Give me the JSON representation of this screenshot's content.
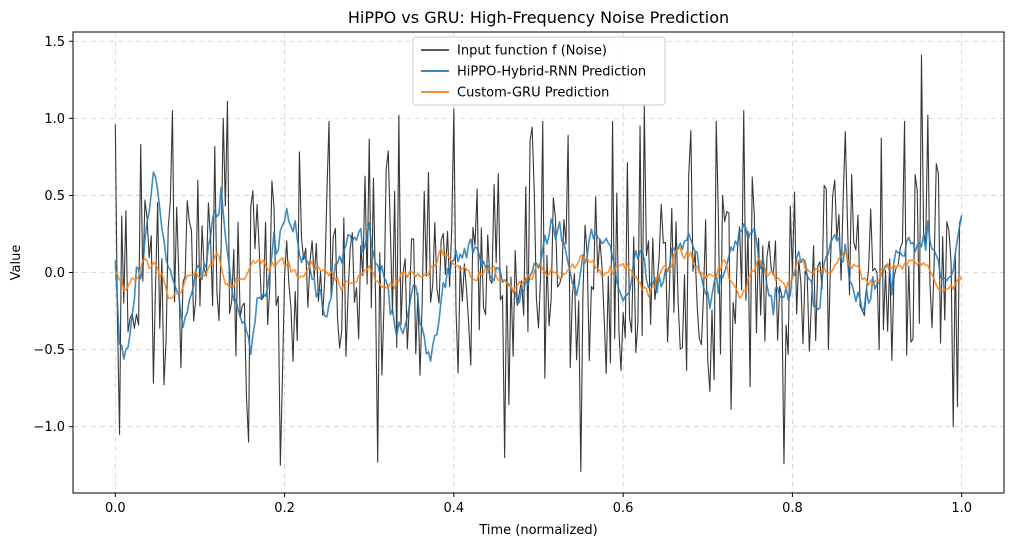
{
  "chart_data": {
    "type": "line",
    "title": "HiPPO vs GRU: High-Frequency Noise Prediction",
    "xlabel": "Time (normalized)",
    "ylabel": "Value",
    "xlim": [
      -0.05,
      1.05
    ],
    "ylim": [
      -1.43,
      1.56
    ],
    "xticks": [
      0.0,
      0.2,
      0.4,
      0.6,
      0.8,
      1.0
    ],
    "xtick_labels": [
      "0.0",
      "0.2",
      "0.4",
      "0.6",
      "0.8",
      "1.0"
    ],
    "yticks": [
      -1.0,
      -0.5,
      0.0,
      0.5,
      1.0,
      1.5
    ],
    "ytick_labels": [
      "−1.0",
      "−0.5",
      "0.0",
      "0.5",
      "1.0",
      "1.5"
    ],
    "grid": true,
    "legend_position": "top-center",
    "n_points": 401,
    "x_range": [
      0.0,
      1.0
    ],
    "series": [
      {
        "name": "Input function f (Noise)",
        "color": "#222222",
        "role": "noise",
        "anchors": [
          [
            0.0,
            0.96
          ],
          [
            0.005,
            -1.05
          ],
          [
            0.012,
            0.4
          ],
          [
            0.03,
            0.83
          ],
          [
            0.068,
            1.05
          ],
          [
            0.128,
            1.0
          ],
          [
            0.133,
            1.11
          ],
          [
            0.158,
            -1.1
          ],
          [
            0.195,
            -1.25
          ],
          [
            0.31,
            -1.23
          ],
          [
            0.335,
            1.02
          ],
          [
            0.401,
            1.06
          ],
          [
            0.46,
            -1.2
          ],
          [
            0.505,
            0.98
          ],
          [
            0.55,
            -1.29
          ],
          [
            0.62,
            0.95
          ],
          [
            0.625,
            1.08
          ],
          [
            0.68,
            0.92
          ],
          [
            0.71,
            0.98
          ],
          [
            0.742,
            1.05
          ],
          [
            0.79,
            -1.24
          ],
          [
            0.953,
            1.41
          ],
          [
            0.96,
            1.02
          ],
          [
            0.995,
            -0.87
          ],
          [
            1.0,
            0.37
          ]
        ],
        "amplitude": 0.42
      },
      {
        "name": "HiPPO-Hybrid-RNN Prediction",
        "color": "#1f77b4",
        "role": "smooth",
        "anchors": [
          [
            0.0,
            0.05
          ],
          [
            0.005,
            -0.4
          ],
          [
            0.01,
            -0.55
          ],
          [
            0.02,
            -0.25
          ],
          [
            0.035,
            0.3
          ],
          [
            0.045,
            0.55
          ],
          [
            0.06,
            0.1
          ],
          [
            0.08,
            -0.25
          ],
          [
            0.1,
            0.05
          ],
          [
            0.125,
            0.48
          ],
          [
            0.14,
            -0.1
          ],
          [
            0.16,
            -0.4
          ],
          [
            0.185,
            0.0
          ],
          [
            0.2,
            0.35
          ],
          [
            0.225,
            0.05
          ],
          [
            0.25,
            -0.2
          ],
          [
            0.27,
            0.2
          ],
          [
            0.29,
            0.35
          ],
          [
            0.31,
            0.05
          ],
          [
            0.33,
            -0.35
          ],
          [
            0.35,
            -0.2
          ],
          [
            0.37,
            -0.55
          ],
          [
            0.39,
            -0.1
          ],
          [
            0.42,
            0.2
          ],
          [
            0.44,
            0.0
          ],
          [
            0.47,
            -0.15
          ],
          [
            0.5,
            0.1
          ],
          [
            0.525,
            0.35
          ],
          [
            0.545,
            -0.1
          ],
          [
            0.56,
            0.2
          ],
          [
            0.58,
            0.33
          ],
          [
            0.6,
            -0.25
          ],
          [
            0.62,
            0.1
          ],
          [
            0.645,
            -0.2
          ],
          [
            0.66,
            0.3
          ],
          [
            0.69,
            0.0
          ],
          [
            0.71,
            -0.1
          ],
          [
            0.74,
            0.35
          ],
          [
            0.77,
            0.0
          ],
          [
            0.79,
            -0.2
          ],
          [
            0.81,
            0.1
          ],
          [
            0.83,
            -0.25
          ],
          [
            0.85,
            0.3
          ],
          [
            0.87,
            -0.1
          ],
          [
            0.89,
            -0.25
          ],
          [
            0.91,
            0.05
          ],
          [
            0.935,
            0.2
          ],
          [
            0.96,
            0.3
          ],
          [
            0.975,
            0.05
          ],
          [
            0.99,
            0.1
          ],
          [
            1.0,
            0.38
          ]
        ],
        "amplitude": 0.13
      },
      {
        "name": "Custom-GRU Prediction",
        "color": "#ff7f0e",
        "role": "smooth",
        "anchors": [
          [
            0.0,
            0.02
          ],
          [
            0.01,
            -0.13
          ],
          [
            0.025,
            -0.05
          ],
          [
            0.035,
            0.08
          ],
          [
            0.05,
            0.05
          ],
          [
            0.065,
            -0.15
          ],
          [
            0.08,
            -0.1
          ],
          [
            0.1,
            0.0
          ],
          [
            0.12,
            0.12
          ],
          [
            0.135,
            -0.1
          ],
          [
            0.15,
            -0.05
          ],
          [
            0.17,
            0.05
          ],
          [
            0.2,
            0.08
          ],
          [
            0.22,
            -0.05
          ],
          [
            0.245,
            0.05
          ],
          [
            0.265,
            -0.12
          ],
          [
            0.285,
            -0.05
          ],
          [
            0.3,
            0.05
          ],
          [
            0.32,
            -0.1
          ],
          [
            0.34,
            0.0
          ],
          [
            0.37,
            -0.05
          ],
          [
            0.385,
            0.2
          ],
          [
            0.4,
            0.05
          ],
          [
            0.42,
            -0.05
          ],
          [
            0.44,
            0.05
          ],
          [
            0.47,
            -0.1
          ],
          [
            0.5,
            0.05
          ],
          [
            0.52,
            -0.05
          ],
          [
            0.545,
            0.0
          ],
          [
            0.56,
            0.12
          ],
          [
            0.58,
            -0.05
          ],
          [
            0.6,
            0.05
          ],
          [
            0.63,
            -0.1
          ],
          [
            0.65,
            0.0
          ],
          [
            0.67,
            0.1
          ],
          [
            0.7,
            -0.05
          ],
          [
            0.72,
            0.05
          ],
          [
            0.74,
            -0.1
          ],
          [
            0.76,
            0.05
          ],
          [
            0.79,
            -0.05
          ],
          [
            0.81,
            0.05
          ],
          [
            0.84,
            0.0
          ],
          [
            0.86,
            0.1
          ],
          [
            0.89,
            -0.05
          ],
          [
            0.92,
            0.05
          ],
          [
            0.95,
            0.05
          ],
          [
            0.975,
            -0.1
          ],
          [
            1.0,
            -0.05
          ]
        ],
        "amplitude": 0.05
      }
    ]
  }
}
